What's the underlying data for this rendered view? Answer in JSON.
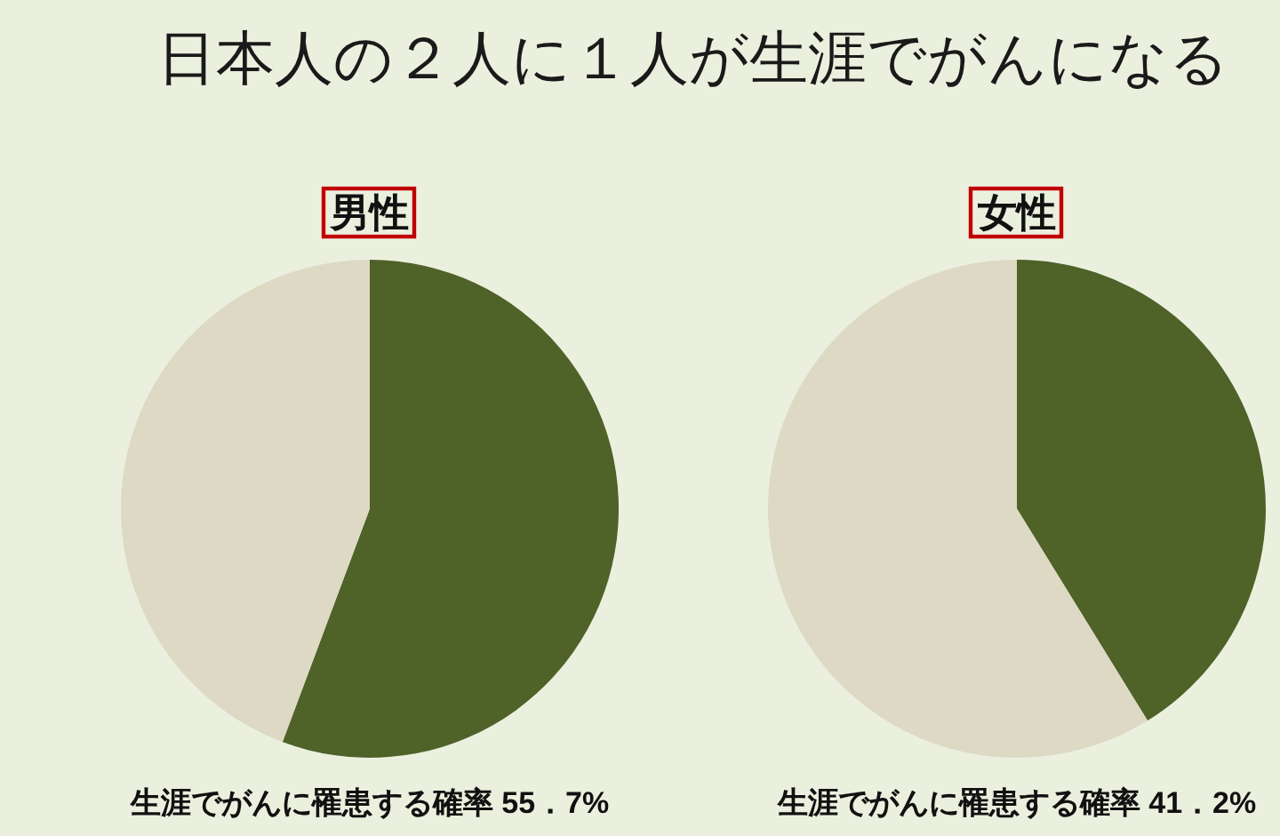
{
  "chart_data": [
    {
      "type": "other",
      "title": "日本人の２人に１人が生涯でがんになる"
    },
    {
      "type": "pie",
      "title": "男性",
      "categories": [
        null,
        null
      ],
      "values": [
        55.7,
        44.3
      ],
      "colors": [
        "#4f6228",
        "#ddd9c4"
      ],
      "annotations": [
        "生涯でがんに罹患する確率 55．7%"
      ]
    },
    {
      "type": "pie",
      "title": "女性",
      "categories": [
        null,
        null
      ],
      "values": [
        41.2,
        58.8
      ],
      "colors": [
        "#4f6228",
        "#ddd9c4"
      ],
      "annotations": [
        "生涯でがんに罹患する確率 41．2%"
      ]
    }
  ]
}
